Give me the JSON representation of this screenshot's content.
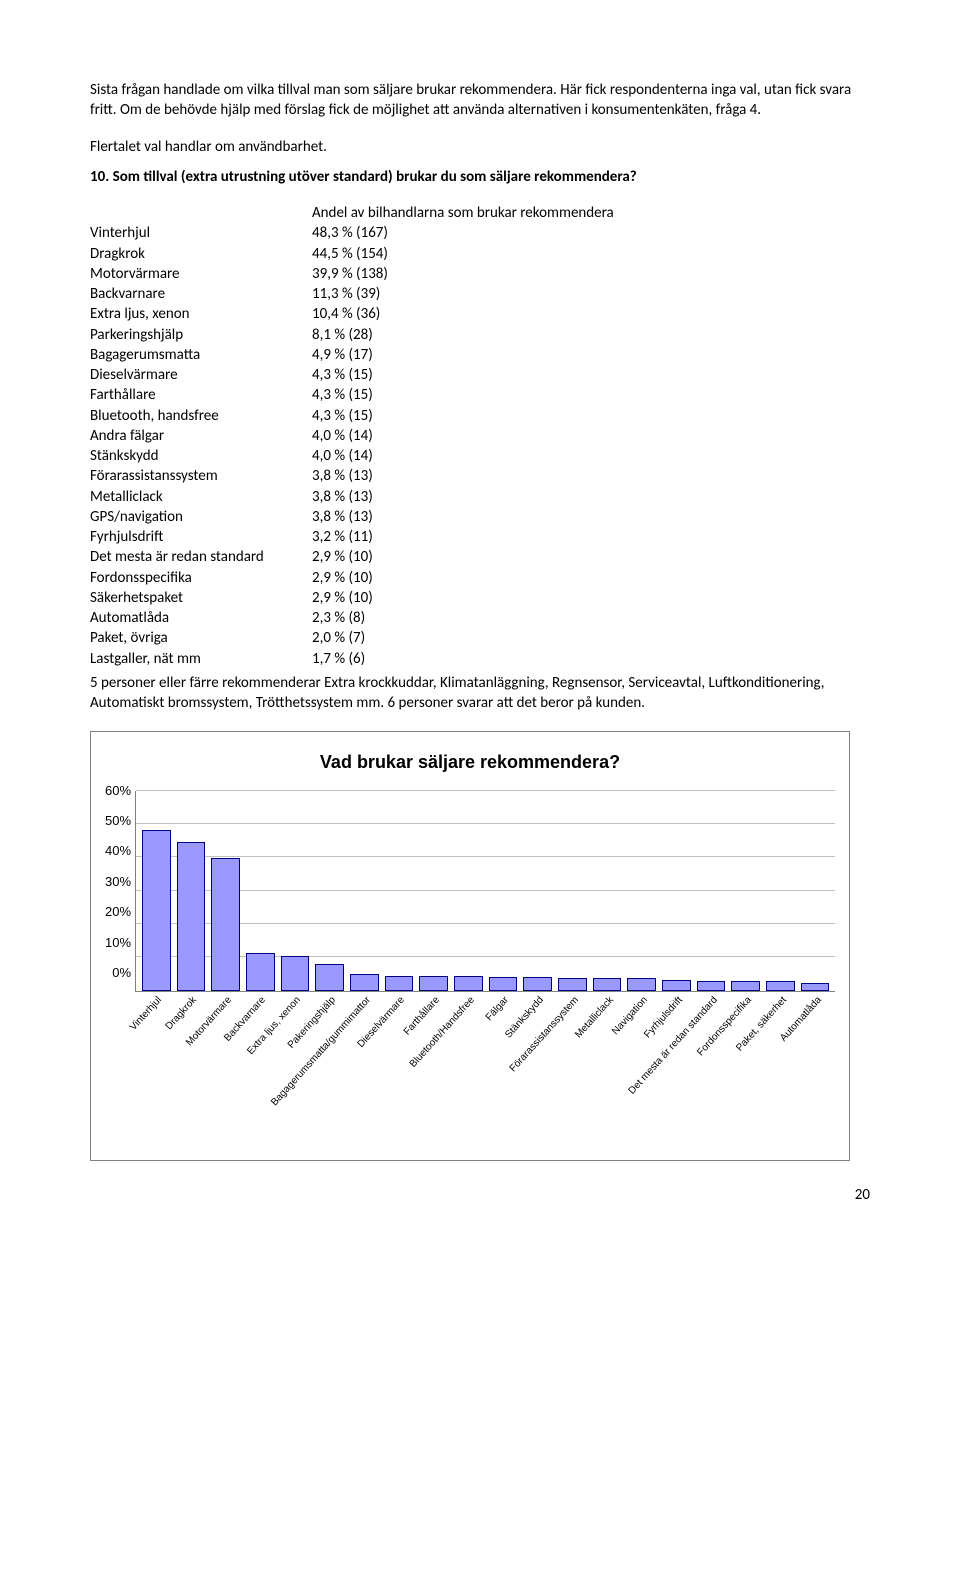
{
  "intro": {
    "p1": "Sista frågan handlade om vilka tillval man som säljare brukar rekommendera. Här fick respondenterna inga val, utan fick svara fritt. Om de behövde hjälp med förslag fick de möjlighet att använda alternativen i konsumentenkäten, fråga 4.",
    "p2": "Flertalet val handlar om användbarhet."
  },
  "question": "10. Som tillval (extra utrustning utöver standard) brukar du som säljare rekommendera?",
  "table": {
    "header": "Andel av bilhandlarna som brukar rekommendera",
    "rows": [
      {
        "label": "Vinterhjul",
        "value": "48,3 % (167)"
      },
      {
        "label": "Dragkrok",
        "value": "44,5 % (154)"
      },
      {
        "label": "Motorvärmare",
        "value": "39,9 % (138)"
      },
      {
        "label": "Backvarnare",
        "value": "11,3 % (39)"
      },
      {
        "label": "Extra ljus, xenon",
        "value": "10,4 % (36)"
      },
      {
        "label": "Parkeringshjälp",
        "value": "8,1 % (28)"
      },
      {
        "label": "Bagagerumsmatta",
        "value": "4,9 % (17)"
      },
      {
        "label": "Dieselvärmare",
        "value": "4,3 % (15)"
      },
      {
        "label": "Farthållare",
        "value": "4,3 % (15)"
      },
      {
        "label": "Bluetooth, handsfree",
        "value": "4,3 % (15)"
      },
      {
        "label": "Andra fälgar",
        "value": "4,0 % (14)"
      },
      {
        "label": "Stänkskydd",
        "value": "4,0 % (14)"
      },
      {
        "label": "Förarassistanssystem",
        "value": "3,8 % (13)"
      },
      {
        "label": "Metalliclack",
        "value": "3,8 % (13)"
      },
      {
        "label": "GPS/navigation",
        "value": "3,8 % (13)"
      },
      {
        "label": "Fyrhjulsdrift",
        "value": "3,2 % (11)"
      },
      {
        "label": "Det mesta är redan standard",
        "value": "2,9 % (10)"
      },
      {
        "label": "Fordonsspecifika",
        "value": "2,9 % (10)"
      },
      {
        "label": "Säkerhetspaket",
        "value": "2,9 % (10)"
      },
      {
        "label": "Automatlåda",
        "value": "2,3 % (8)"
      },
      {
        "label": "Paket, övriga",
        "value": "2,0 % (7)"
      },
      {
        "label": "Lastgaller, nät mm",
        "value": "1,7 % (6)"
      }
    ]
  },
  "after_table": "5 personer eller färre rekommenderar Extra krockkuddar, Klimatanläggning, Regnsensor, Serviceavtal, Luftkonditionering, Automatiskt bromssystem, Trötthetssystem mm. 6 personer svarar att det beror på kunden.",
  "chart": {
    "title": "Vad brukar säljare rekommendera?",
    "type": "bar",
    "ylim": [
      0,
      60
    ],
    "ytick_step": 10,
    "yticks": [
      "60%",
      "50%",
      "40%",
      "30%",
      "20%",
      "10%",
      "0%"
    ],
    "bar_color": "#9999ff",
    "bar_border": "#000080",
    "grid_color": "#c0c0c0",
    "axis_color": "#808080",
    "background_color": "#ffffff",
    "categories": [
      "Vinterhjul",
      "Dragkrok",
      "Motorvärmare",
      "Backvarnare",
      "Extra ljus, xenon",
      "Pakeringshjälp",
      "Bagagerumsmatta/gummimattor",
      "Dieselvärmare",
      "Farthållare",
      "Bluetooth/Handsfree",
      "Fälgar",
      "Stänkskydd",
      "Förarassistanssystem",
      "Metalliclack",
      "Navigation",
      "Fyrhjulsdrift",
      "Det mesta är redan standard",
      "Fordonsspecifika",
      "Paket, säkerhet",
      "Automatlåda"
    ],
    "values": [
      48.3,
      44.5,
      39.9,
      11.3,
      10.4,
      8.1,
      4.9,
      4.3,
      4.3,
      4.3,
      4.0,
      4.0,
      3.8,
      3.8,
      3.8,
      3.2,
      2.9,
      2.9,
      2.9,
      2.3
    ]
  },
  "page_number": "20"
}
